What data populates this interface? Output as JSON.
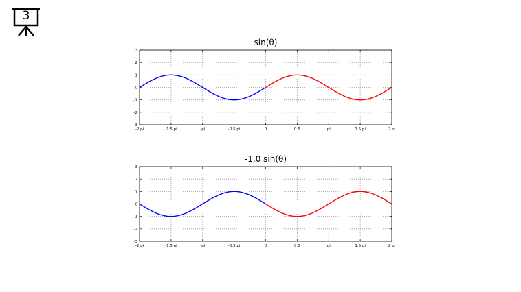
{
  "slide": {
    "number": "3",
    "icon": "presentation-board-icon"
  },
  "colors": {
    "blue": "#0000ff",
    "red": "#ff0000",
    "grid": "#9a9a9a"
  },
  "chart_data": [
    {
      "type": "line",
      "title": "sin(θ)",
      "amplitude": 1.0,
      "x_range_pi": [
        -2,
        2
      ],
      "ylim": [
        -3,
        3
      ],
      "grid": true,
      "x_tick_values_pi": [
        -2,
        -1.5,
        -1,
        -0.5,
        0,
        0.5,
        1,
        1.5,
        2
      ],
      "x_tick_labels": [
        "-2 pi",
        "-1.5 pi",
        "-pi",
        "-0.5 pi",
        "0",
        "0.5",
        "pi",
        "1.5 pi",
        "2 pi"
      ],
      "y_ticks": [
        -3,
        -2,
        -1,
        0,
        1,
        2,
        3
      ],
      "y_tick_labels": [
        "-3",
        "-2",
        "-1",
        "0",
        "1",
        "2",
        "3"
      ],
      "series": [
        {
          "color": "#0000ff",
          "x_range_pi": [
            -2,
            0
          ]
        },
        {
          "color": "#ff0000",
          "x_range_pi": [
            0,
            2
          ]
        }
      ]
    },
    {
      "type": "line",
      "title": "-1.0 sin(θ)",
      "amplitude": -1.0,
      "x_range_pi": [
        -2,
        2
      ],
      "ylim": [
        -3,
        3
      ],
      "grid": true,
      "x_tick_values_pi": [
        -2,
        -1.5,
        -1,
        -0.5,
        0,
        0.5,
        1,
        1.5,
        2
      ],
      "x_tick_labels": [
        "-2 pi",
        "-1.5 pi",
        "-pi",
        "-0.5 pi",
        "0",
        "0.5",
        "pi",
        "1.5 pi",
        "2 pi"
      ],
      "y_ticks": [
        -3,
        -2,
        -1,
        0,
        1,
        2,
        3
      ],
      "y_tick_labels": [
        "-3",
        "-2",
        "-1",
        "0",
        "1",
        "2",
        "3"
      ],
      "series": [
        {
          "color": "#0000ff",
          "x_range_pi": [
            -2,
            0
          ]
        },
        {
          "color": "#ff0000",
          "x_range_pi": [
            0,
            2
          ]
        }
      ]
    }
  ]
}
